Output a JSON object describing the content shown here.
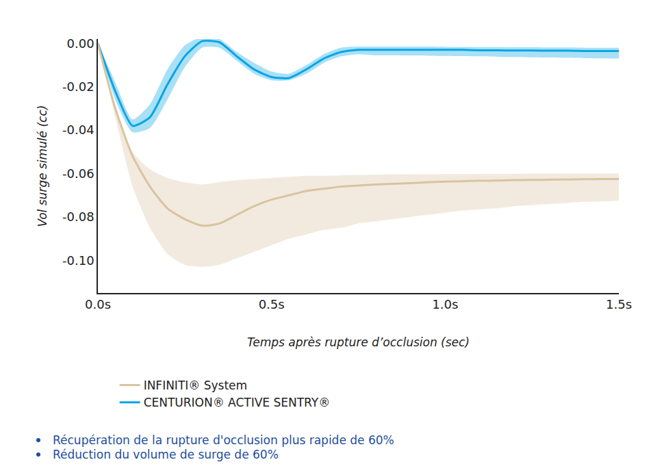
{
  "chart_data": {
    "type": "line",
    "x_label": "Temps après rupture d’occlusion (sec)",
    "y_label": "Vol surge simulé (cc)",
    "x": [
      0,
      0.05,
      0.1,
      0.15,
      0.2,
      0.25,
      0.3,
      0.35,
      0.4,
      0.45,
      0.5,
      0.55,
      0.6,
      0.65,
      0.7,
      0.75,
      0.8,
      0.85,
      0.9,
      0.95,
      1.0,
      1.05,
      1.1,
      1.15,
      1.2,
      1.25,
      1.3,
      1.35,
      1.4,
      1.45,
      1.5
    ],
    "series": [
      {
        "name": "CENTURION® ACTIVE SENTRY®",
        "color": "#0aa5e6",
        "values": [
          0,
          -0.022,
          -0.038,
          -0.034,
          -0.019,
          -0.006,
          0.001,
          0.0005,
          -0.006,
          -0.012,
          -0.0155,
          -0.016,
          -0.012,
          -0.007,
          -0.004,
          -0.003,
          -0.003,
          -0.003,
          -0.003,
          -0.003,
          -0.003,
          -0.003,
          -0.0032,
          -0.0032,
          -0.0033,
          -0.0033,
          -0.0034,
          -0.0034,
          -0.0035,
          -0.0035,
          -0.0035
        ],
        "upper": [
          0,
          -0.018,
          -0.035,
          -0.028,
          -0.012,
          -0.001,
          0.003,
          0.002,
          -0.004,
          -0.009,
          -0.013,
          -0.014,
          -0.01,
          -0.005,
          -0.002,
          -0.0015,
          -0.0015,
          -0.0015,
          -0.0015,
          -0.0015,
          -0.0016,
          -0.0016,
          -0.0017,
          -0.0017,
          -0.0018,
          -0.0018,
          -0.0019,
          -0.0019,
          -0.002,
          -0.002,
          -0.002
        ],
        "lower": [
          0,
          -0.026,
          -0.041,
          -0.039,
          -0.026,
          -0.011,
          -0.002,
          -0.002,
          -0.008,
          -0.014,
          -0.017,
          -0.017,
          -0.014,
          -0.009,
          -0.006,
          -0.005,
          -0.0055,
          -0.0055,
          -0.0056,
          -0.0057,
          -0.0058,
          -0.0059,
          -0.006,
          -0.0062,
          -0.0063,
          -0.0064,
          -0.0065,
          -0.0066,
          -0.0068,
          -0.0069,
          -0.007
        ]
      },
      {
        "name": "INFINITI® System",
        "color": "#d9c4a0",
        "values": [
          0,
          -0.03,
          -0.052,
          -0.066,
          -0.076,
          -0.081,
          -0.084,
          -0.083,
          -0.079,
          -0.075,
          -0.072,
          -0.07,
          -0.068,
          -0.067,
          -0.066,
          -0.0655,
          -0.065,
          -0.0647,
          -0.0644,
          -0.064,
          -0.0637,
          -0.0635,
          -0.0633,
          -0.0632,
          -0.063,
          -0.0629,
          -0.0628,
          -0.0627,
          -0.0626,
          -0.0625,
          -0.0625
        ],
        "upper": [
          0,
          -0.028,
          -0.05,
          -0.058,
          -0.062,
          -0.064,
          -0.065,
          -0.064,
          -0.063,
          -0.0625,
          -0.062,
          -0.0615,
          -0.061,
          -0.061,
          -0.0608,
          -0.0606,
          -0.0605,
          -0.0604,
          -0.0603,
          -0.0603,
          -0.0602,
          -0.0602,
          -0.0601,
          -0.0601,
          -0.0601,
          -0.06,
          -0.06,
          -0.06,
          -0.06,
          -0.06,
          -0.06
        ],
        "lower": [
          0,
          -0.034,
          -0.066,
          -0.085,
          -0.097,
          -0.102,
          -0.103,
          -0.102,
          -0.099,
          -0.096,
          -0.093,
          -0.09,
          -0.088,
          -0.086,
          -0.085,
          -0.083,
          -0.082,
          -0.081,
          -0.08,
          -0.079,
          -0.078,
          -0.077,
          -0.0765,
          -0.076,
          -0.075,
          -0.0745,
          -0.074,
          -0.0735,
          -0.073,
          -0.0728,
          -0.0725
        ]
      }
    ],
    "xlim": [
      0,
      1.5
    ],
    "xticks": [
      {
        "value": 0,
        "label": "0.0s"
      },
      {
        "value": 0.5,
        "label": "0.5s"
      },
      {
        "value": 1.0,
        "label": "1.0s"
      },
      {
        "value": 1.5,
        "label": "1.5s"
      }
    ],
    "ylim": [
      -0.115,
      0.002
    ],
    "yticks": [
      {
        "value": 0,
        "label": "0.00"
      },
      {
        "value": -0.02,
        "label": "-0.02"
      },
      {
        "value": -0.04,
        "label": "-0.04"
      },
      {
        "value": -0.06,
        "label": "-0.06"
      },
      {
        "value": -0.08,
        "label": "-0.08"
      },
      {
        "value": -0.1,
        "label": "-0.10"
      }
    ],
    "grid": false,
    "legend": "bottom",
    "annotations": [
      "Récupération de la rupture d'occlusion plus rapide de 60%",
      "Réduction du volume de surge de 60%"
    ]
  }
}
